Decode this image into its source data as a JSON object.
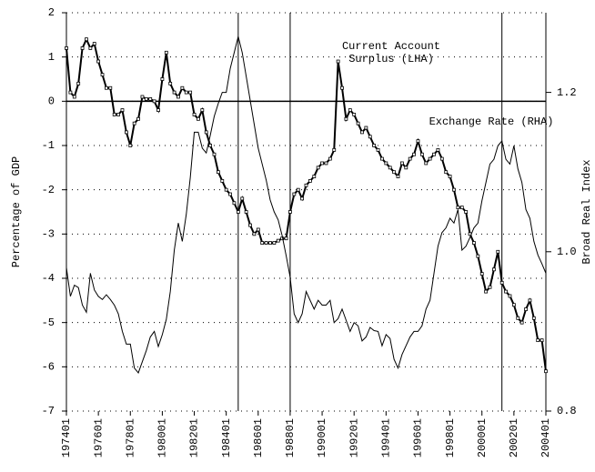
{
  "chart_data": {
    "type": "line",
    "y_label": "Percentage of GDP",
    "y2_label": "Broad Real Index",
    "categories": [
      "197401",
      null,
      null,
      null,
      null,
      null,
      null,
      null,
      "197601",
      null,
      null,
      null,
      null,
      null,
      null,
      null,
      "197801",
      null,
      null,
      null,
      null,
      null,
      null,
      null,
      "198001",
      null,
      null,
      null,
      null,
      null,
      null,
      null,
      "198201",
      null,
      null,
      null,
      null,
      null,
      null,
      null,
      "198401",
      null,
      null,
      null,
      null,
      null,
      null,
      null,
      "198601",
      null,
      null,
      null,
      null,
      null,
      null,
      null,
      "198801",
      null,
      null,
      null,
      null,
      null,
      null,
      null,
      "199001",
      null,
      null,
      null,
      null,
      null,
      null,
      null,
      "199201",
      null,
      null,
      null,
      null,
      null,
      null,
      null,
      "199401",
      null,
      null,
      null,
      null,
      null,
      null,
      null,
      "199601",
      null,
      null,
      null,
      null,
      null,
      null,
      null,
      "199801",
      null,
      null,
      null,
      null,
      null,
      null,
      null,
      "200001",
      null,
      null,
      null,
      null,
      null,
      null,
      null,
      "200201",
      null,
      null,
      null,
      null,
      null,
      null,
      null,
      "200401"
    ],
    "series": [
      {
        "name": "Current Account Surplus (LHA)",
        "color": "#000000",
        "axis": "y",
        "values": [
          1.2,
          0.2,
          0.1,
          0.4,
          1.2,
          1.4,
          1.2,
          1.3,
          0.9,
          0.6,
          0.3,
          0.3,
          -0.3,
          -0.3,
          -0.2,
          -0.7,
          -1.0,
          -0.5,
          -0.4,
          0.1,
          0.05,
          0.05,
          0.0,
          -0.2,
          0.5,
          1.1,
          0.4,
          0.2,
          0.1,
          0.3,
          0.2,
          0.2,
          -0.3,
          -0.4,
          -0.2,
          -0.7,
          -1.0,
          -1.2,
          -1.6,
          -1.8,
          -2.0,
          -2.1,
          -2.3,
          -2.5,
          -2.2,
          -2.5,
          -2.8,
          -3.0,
          -2.9,
          -3.2,
          -3.2,
          -3.2,
          -3.2,
          -3.15,
          -3.1,
          -3.1,
          -2.5,
          -2.1,
          -2.0,
          -2.2,
          -1.9,
          -1.8,
          -1.7,
          -1.5,
          -1.4,
          -1.4,
          -1.3,
          -1.1,
          0.9,
          0.3,
          -0.4,
          -0.2,
          -0.3,
          -0.5,
          -0.7,
          -0.6,
          -0.8,
          -1.0,
          -1.1,
          -1.3,
          -1.4,
          -1.5,
          -1.6,
          -1.7,
          -1.4,
          -1.5,
          -1.3,
          -1.2,
          -0.9,
          -1.2,
          -1.4,
          -1.3,
          -1.2,
          -1.1,
          -1.3,
          -1.6,
          -1.7,
          -2.0,
          -2.4,
          -2.4,
          -2.5,
          -3.0,
          -3.2,
          -3.5,
          -3.9,
          -4.3,
          -4.2,
          -3.8,
          -3.4,
          -4.1,
          -4.3,
          -4.4,
          -4.6,
          -4.9,
          -5.0,
          -4.7,
          -4.5,
          -4.9,
          -5.4,
          -5.4,
          -6.1
        ]
      },
      {
        "name": "Exchange Rate (RHA)",
        "color": "#000000",
        "axis": "y2",
        "values": [
          0.98,
          0.944,
          0.958,
          0.955,
          0.933,
          0.924,
          0.973,
          0.952,
          0.944,
          0.94,
          0.946,
          0.94,
          0.933,
          0.922,
          0.9,
          0.884,
          0.884,
          0.854,
          0.848,
          0.862,
          0.876,
          0.893,
          0.9,
          0.881,
          0.896,
          0.915,
          0.95,
          1.002,
          1.036,
          1.013,
          1.047,
          1.093,
          1.15,
          1.15,
          1.13,
          1.124,
          1.146,
          1.17,
          1.186,
          1.2,
          1.2,
          1.23,
          1.25,
          1.27,
          1.25,
          1.22,
          1.19,
          1.16,
          1.13,
          1.11,
          1.09,
          1.065,
          1.05,
          1.04,
          1.02,
          0.995,
          0.968,
          0.922,
          0.911,
          0.922,
          0.95,
          0.939,
          0.928,
          0.939,
          0.933,
          0.933,
          0.939,
          0.911,
          0.916,
          0.928,
          0.914,
          0.9,
          0.911,
          0.907,
          0.888,
          0.893,
          0.905,
          0.901,
          0.9,
          0.882,
          0.896,
          0.891,
          0.865,
          0.854,
          0.871,
          0.882,
          0.893,
          0.9,
          0.9,
          0.907,
          0.928,
          0.939,
          0.973,
          1.007,
          1.024,
          1.03,
          1.042,
          1.036,
          1.053,
          1.002,
          1.007,
          1.018,
          1.03,
          1.036,
          1.064,
          1.087,
          1.11,
          1.116,
          1.133,
          1.139,
          1.116,
          1.11,
          1.133,
          1.104,
          1.087,
          1.053,
          1.042,
          1.013,
          0.996,
          0.985,
          0.973
        ]
      }
    ],
    "ylim": [
      -7,
      2
    ],
    "yticks": [
      -7,
      -6,
      -5,
      -4,
      -3,
      -2,
      -1,
      0,
      1,
      2
    ],
    "y2lim": [
      0.8,
      1.3
    ],
    "y2ticks": [
      0.8,
      {
        "value": 1,
        "label": "1.0"
      },
      1.2
    ],
    "grid": true
  }
}
